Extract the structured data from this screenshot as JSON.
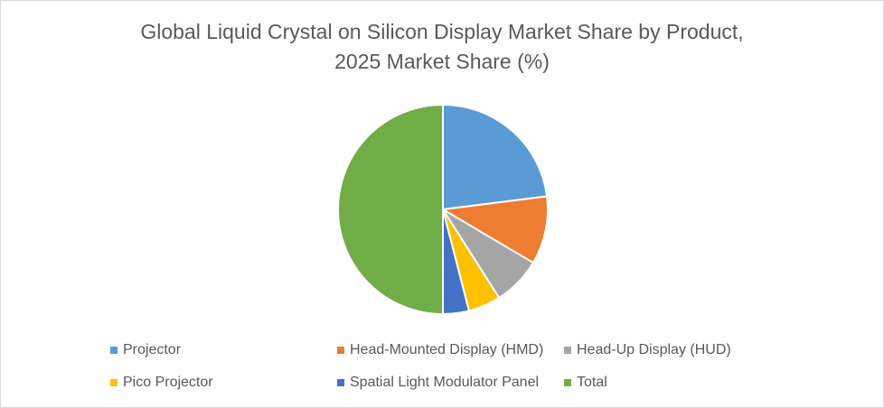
{
  "chart_data": {
    "type": "pie",
    "title": "Global Liquid Crystal on Silicon Display Market Share by Product, 2025 Market Share (%)",
    "title_lines": [
      "Global Liquid Crystal on Silicon Display Market Share by Product,",
      "2025 Market Share (%)"
    ],
    "categories": [
      "Projector",
      "Head-Mounted Display (HMD)",
      "Head-Up Display (HUD)",
      "Pico Projector",
      "Spatial Light Modulator Panel",
      "Total"
    ],
    "values": [
      23.0,
      10.5,
      7.5,
      5.0,
      4.0,
      50.0
    ],
    "colors": [
      "#5b9bd5",
      "#ed7d31",
      "#a5a5a5",
      "#ffc000",
      "#4472c4",
      "#70ad47"
    ],
    "legend_position": "bottom"
  }
}
